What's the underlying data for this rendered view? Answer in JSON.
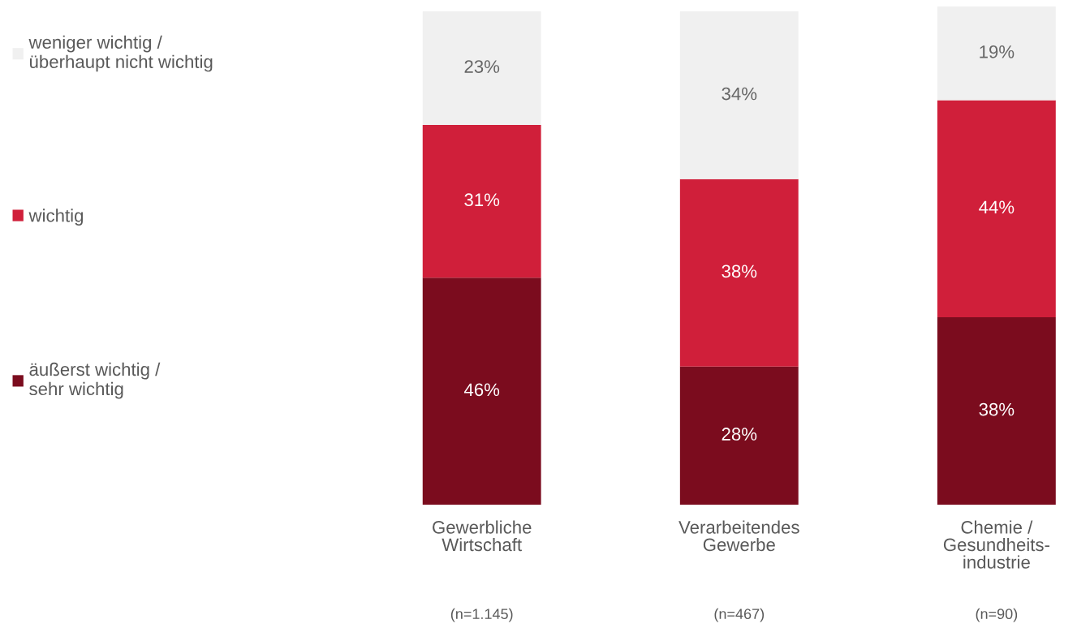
{
  "chart_data": {
    "type": "bar",
    "stacked": true,
    "legend": "left",
    "grid": false,
    "categories": [
      "Gewerbliche\nWirtschaft",
      "Verarbeitendes\nGewerbe",
      "Chemie /\nGesundheits-\nindustrie"
    ],
    "series": [
      {
        "name": "äußerst wichtig /\nsehr wichtig",
        "color": "#7b0c1e",
        "values": [
          46,
          28,
          38
        ],
        "value_labels": [
          "46%",
          "28%",
          "38%"
        ]
      },
      {
        "name": "wichtig",
        "color": "#d01f3a",
        "values": [
          31,
          38,
          44
        ],
        "value_labels": [
          "31%",
          "38%",
          "44%"
        ]
      },
      {
        "name": "weniger wichtig /\nüberhaupt nicht wichtig",
        "color": "#f0f0f0",
        "values": [
          23,
          34,
          19
        ],
        "value_labels": [
          "23%",
          "34%",
          "19%"
        ]
      }
    ],
    "annotations": [
      "(n=1.145)",
      "(n=467)",
      "(n=90)"
    ]
  }
}
